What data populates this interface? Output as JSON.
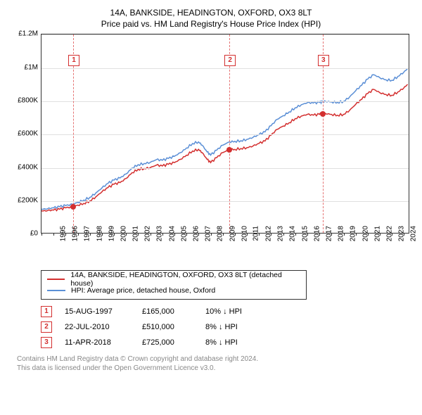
{
  "title_line1": "14A, BANKSIDE, HEADINGTON, OXFORD, OX3 8LT",
  "title_line2": "Price paid vs. HM Land Registry's House Price Index (HPI)",
  "chart": {
    "type": "line",
    "x_years": [
      1995,
      1996,
      1997,
      1998,
      1999,
      2000,
      2001,
      2002,
      2003,
      2004,
      2005,
      2006,
      2007,
      2008,
      2009,
      2010,
      2011,
      2012,
      2013,
      2014,
      2015,
      2016,
      2017,
      2018,
      2019,
      2020,
      2021,
      2022,
      2023,
      2024,
      2025
    ],
    "xlim": [
      1995,
      2025.5
    ],
    "ylim": [
      0,
      1200000
    ],
    "ytick_step": 200000,
    "yticks": [
      "£0",
      "£200K",
      "£400K",
      "£600K",
      "£800K",
      "£1M",
      "£1.2M"
    ],
    "grid_color": "#e0e0e0",
    "axis_color": "#333333",
    "background": "#ffffff",
    "series": [
      {
        "name": "subject",
        "color": "#d32f2f",
        "width": 1.5,
        "points": [
          [
            1995.0,
            140000
          ],
          [
            1995.5,
            142000
          ],
          [
            1996.0,
            145000
          ],
          [
            1996.5,
            150000
          ],
          [
            1997.0,
            158000
          ],
          [
            1997.6,
            165000
          ],
          [
            1998.0,
            175000
          ],
          [
            1998.5,
            185000
          ],
          [
            1999.0,
            200000
          ],
          [
            1999.5,
            225000
          ],
          [
            2000.0,
            255000
          ],
          [
            2000.5,
            280000
          ],
          [
            2001.0,
            300000
          ],
          [
            2001.5,
            310000
          ],
          [
            2002.0,
            335000
          ],
          [
            2002.5,
            370000
          ],
          [
            2003.0,
            390000
          ],
          [
            2003.5,
            395000
          ],
          [
            2004.0,
            400000
          ],
          [
            2004.5,
            415000
          ],
          [
            2005.0,
            410000
          ],
          [
            2005.5,
            420000
          ],
          [
            2006.0,
            430000
          ],
          [
            2006.5,
            450000
          ],
          [
            2007.0,
            475000
          ],
          [
            2007.5,
            500000
          ],
          [
            2008.0,
            510000
          ],
          [
            2008.3,
            490000
          ],
          [
            2008.7,
            450000
          ],
          [
            2009.0,
            430000
          ],
          [
            2009.5,
            460000
          ],
          [
            2010.0,
            490000
          ],
          [
            2010.55,
            510000
          ],
          [
            2011.0,
            510000
          ],
          [
            2011.5,
            515000
          ],
          [
            2012.0,
            520000
          ],
          [
            2012.5,
            530000
          ],
          [
            2013.0,
            545000
          ],
          [
            2013.5,
            560000
          ],
          [
            2014.0,
            595000
          ],
          [
            2014.5,
            630000
          ],
          [
            2015.0,
            650000
          ],
          [
            2015.5,
            670000
          ],
          [
            2016.0,
            695000
          ],
          [
            2016.5,
            710000
          ],
          [
            2017.0,
            720000
          ],
          [
            2017.5,
            715000
          ],
          [
            2018.0,
            720000
          ],
          [
            2018.27,
            725000
          ],
          [
            2018.5,
            725000
          ],
          [
            2019.0,
            720000
          ],
          [
            2019.5,
            715000
          ],
          [
            2020.0,
            720000
          ],
          [
            2020.5,
            745000
          ],
          [
            2021.0,
            780000
          ],
          [
            2021.5,
            810000
          ],
          [
            2022.0,
            845000
          ],
          [
            2022.5,
            870000
          ],
          [
            2023.0,
            850000
          ],
          [
            2023.5,
            840000
          ],
          [
            2024.0,
            835000
          ],
          [
            2024.5,
            855000
          ],
          [
            2025.0,
            880000
          ],
          [
            2025.3,
            900000
          ]
        ]
      },
      {
        "name": "hpi",
        "color": "#5b8fd6",
        "width": 1.5,
        "points": [
          [
            1995.0,
            150000
          ],
          [
            1995.5,
            153000
          ],
          [
            1996.0,
            158000
          ],
          [
            1996.5,
            165000
          ],
          [
            1997.0,
            172000
          ],
          [
            1997.6,
            180000
          ],
          [
            1998.0,
            192000
          ],
          [
            1998.5,
            205000
          ],
          [
            1999.0,
            222000
          ],
          [
            1999.5,
            248000
          ],
          [
            2000.0,
            278000
          ],
          [
            2000.5,
            305000
          ],
          [
            2001.0,
            325000
          ],
          [
            2001.5,
            338000
          ],
          [
            2002.0,
            362000
          ],
          [
            2002.5,
            398000
          ],
          [
            2003.0,
            418000
          ],
          [
            2003.5,
            425000
          ],
          [
            2004.0,
            432000
          ],
          [
            2004.5,
            448000
          ],
          [
            2005.0,
            444000
          ],
          [
            2005.5,
            455000
          ],
          [
            2006.0,
            468000
          ],
          [
            2006.5,
            490000
          ],
          [
            2007.0,
            518000
          ],
          [
            2007.5,
            545000
          ],
          [
            2008.0,
            555000
          ],
          [
            2008.3,
            535000
          ],
          [
            2008.7,
            495000
          ],
          [
            2009.0,
            475000
          ],
          [
            2009.5,
            505000
          ],
          [
            2010.0,
            535000
          ],
          [
            2010.55,
            555000
          ],
          [
            2011.0,
            558000
          ],
          [
            2011.5,
            562000
          ],
          [
            2012.0,
            570000
          ],
          [
            2012.5,
            582000
          ],
          [
            2013.0,
            598000
          ],
          [
            2013.5,
            615000
          ],
          [
            2014.0,
            652000
          ],
          [
            2014.5,
            690000
          ],
          [
            2015.0,
            712000
          ],
          [
            2015.5,
            735000
          ],
          [
            2016.0,
            760000
          ],
          [
            2016.5,
            778000
          ],
          [
            2017.0,
            790000
          ],
          [
            2017.5,
            788000
          ],
          [
            2018.0,
            792000
          ],
          [
            2018.27,
            795000
          ],
          [
            2018.5,
            798000
          ],
          [
            2019.0,
            795000
          ],
          [
            2019.5,
            792000
          ],
          [
            2020.0,
            798000
          ],
          [
            2020.5,
            825000
          ],
          [
            2021.0,
            862000
          ],
          [
            2021.5,
            895000
          ],
          [
            2022.0,
            932000
          ],
          [
            2022.5,
            958000
          ],
          [
            2023.0,
            940000
          ],
          [
            2023.5,
            928000
          ],
          [
            2024.0,
            925000
          ],
          [
            2024.5,
            948000
          ],
          [
            2025.0,
            975000
          ],
          [
            2025.3,
            995000
          ]
        ]
      }
    ],
    "sales_markers": [
      {
        "n": "1",
        "year": 1997.62,
        "price": 165000,
        "badge_y": 1080000
      },
      {
        "n": "2",
        "year": 2010.55,
        "price": 510000,
        "badge_y": 1080000
      },
      {
        "n": "3",
        "year": 2018.27,
        "price": 725000,
        "badge_y": 1080000
      }
    ],
    "marker_fill": "#d32f2f",
    "vline_color": "#e57373",
    "badge_border": "#d32f2f"
  },
  "legend": {
    "rows": [
      {
        "color": "#d32f2f",
        "label": "14A, BANKSIDE, HEADINGTON, OXFORD, OX3 8LT (detached house)"
      },
      {
        "color": "#5b8fd6",
        "label": "HPI: Average price, detached house, Oxford"
      }
    ]
  },
  "sales_table": [
    {
      "n": "1",
      "date": "15-AUG-1997",
      "price": "£165,000",
      "hpi": "10% ↓ HPI"
    },
    {
      "n": "2",
      "date": "22-JUL-2010",
      "price": "£510,000",
      "hpi": "8% ↓ HPI"
    },
    {
      "n": "3",
      "date": "11-APR-2018",
      "price": "£725,000",
      "hpi": "8% ↓ HPI"
    }
  ],
  "footer_line1": "Contains HM Land Registry data © Crown copyright and database right 2024.",
  "footer_line2": "This data is licensed under the Open Government Licence v3.0."
}
